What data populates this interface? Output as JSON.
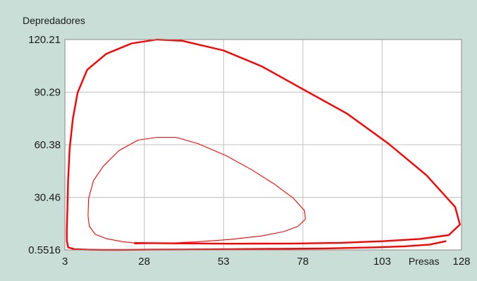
{
  "chart_data": {
    "type": "line",
    "title": "",
    "xlabel": "Presas",
    "ylabel": "Depredadores",
    "xlim": [
      3,
      128
    ],
    "ylim": [
      0.5516,
      120.21
    ],
    "x_ticks": [
      "3",
      "28",
      "53",
      "78",
      "103",
      "128"
    ],
    "y_ticks": [
      "120.21",
      "90.29",
      "60.38",
      "30.46",
      "0.5516"
    ],
    "grid": true,
    "colors": {
      "series": "#ff0000",
      "plot_background": "#ffffff",
      "page_background": "#c8ded6",
      "grid": "#c0c0c0"
    },
    "series": [
      {
        "points": [
          [
            25,
            4.5
          ],
          [
            38,
            4.3
          ],
          [
            55,
            4.1
          ],
          [
            75,
            4.2
          ],
          [
            90,
            4.6
          ],
          [
            103,
            5.5
          ],
          [
            115,
            6.8
          ],
          [
            124,
            9
          ],
          [
            127.5,
            15
          ],
          [
            126,
            25
          ],
          [
            117,
            43
          ],
          [
            105,
            61
          ],
          [
            92,
            78
          ],
          [
            78,
            92
          ],
          [
            65,
            105
          ],
          [
            53,
            114
          ],
          [
            40,
            119.5
          ],
          [
            32,
            120.2
          ],
          [
            24,
            118
          ],
          [
            16,
            112
          ],
          [
            10,
            103
          ],
          [
            7,
            90
          ],
          [
            5.5,
            75
          ],
          [
            4.5,
            58
          ],
          [
            4,
            40
          ],
          [
            3.8,
            25
          ],
          [
            3.6,
            12
          ],
          [
            3.6,
            6
          ],
          [
            4,
            2
          ],
          [
            6,
            1
          ],
          [
            10,
            0.7
          ],
          [
            15,
            0.6
          ],
          [
            22,
            0.6
          ],
          [
            30,
            0.7
          ],
          [
            40,
            0.8
          ],
          [
            55,
            1.0
          ],
          [
            70,
            1.2
          ],
          [
            85,
            1.4
          ],
          [
            100,
            2.0
          ],
          [
            110,
            2.6
          ],
          [
            118,
            3.6
          ],
          [
            123,
            5.5
          ]
        ]
      },
      {
        "points": [
          [
            25,
            4.0
          ],
          [
            30,
            4.2
          ],
          [
            38,
            4.6
          ],
          [
            45,
            5.2
          ],
          [
            55,
            6.5
          ],
          [
            65,
            8.5
          ],
          [
            72,
            11
          ],
          [
            76.5,
            14
          ],
          [
            78.8,
            18
          ],
          [
            78.5,
            23
          ],
          [
            75,
            30
          ],
          [
            69,
            38
          ],
          [
            62,
            46
          ],
          [
            54,
            54
          ],
          [
            45,
            61
          ],
          [
            38,
            64.6
          ],
          [
            32,
            64.6
          ],
          [
            26,
            63
          ],
          [
            20,
            57
          ],
          [
            15,
            48
          ],
          [
            12,
            40
          ],
          [
            10.5,
            30
          ],
          [
            10.3,
            20
          ],
          [
            10.7,
            14
          ],
          [
            12.5,
            9.5
          ],
          [
            16,
            7
          ],
          [
            21,
            5.3
          ],
          [
            25,
            4.5
          ]
        ]
      }
    ]
  }
}
